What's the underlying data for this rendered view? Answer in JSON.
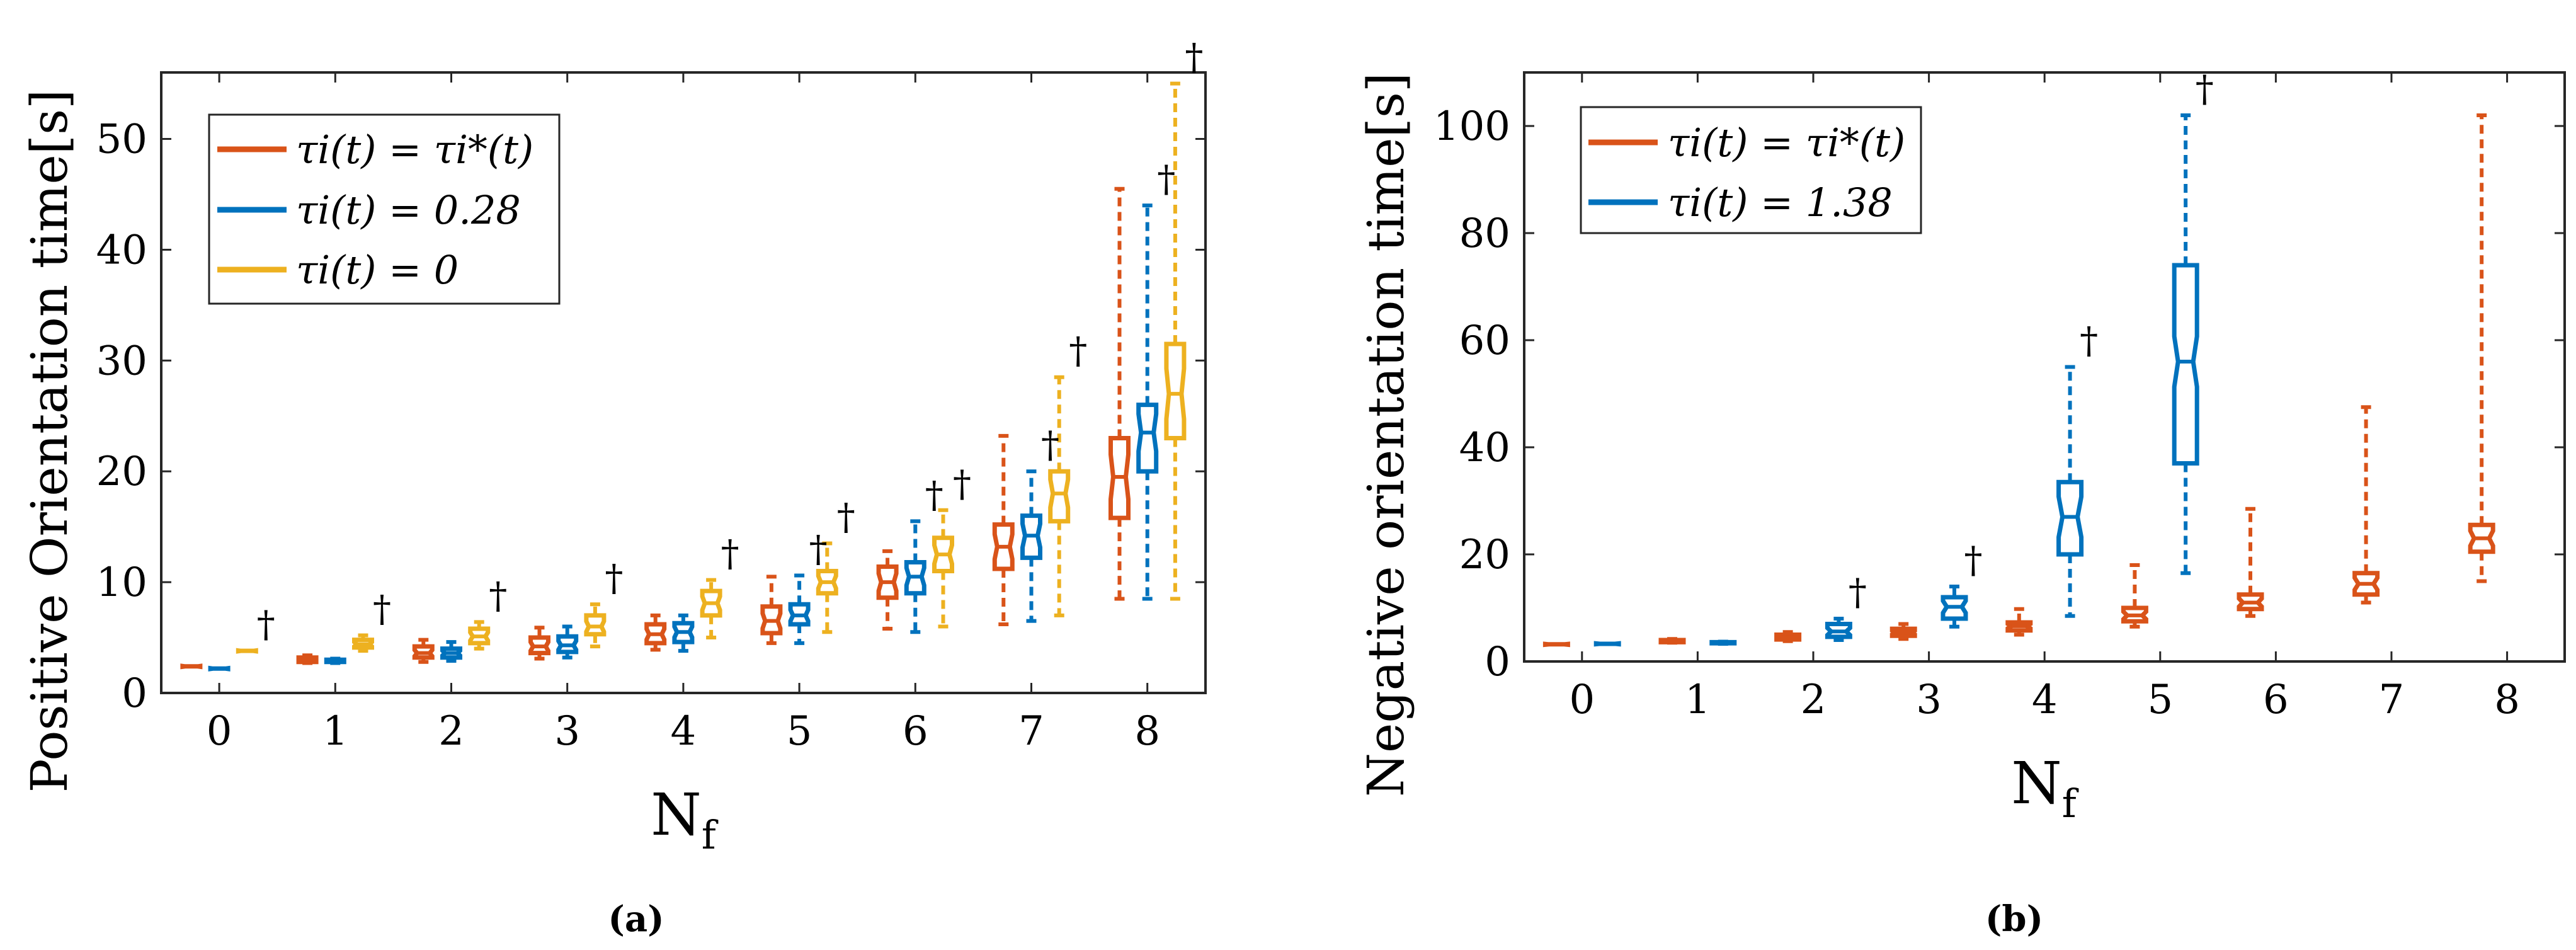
{
  "chart_data": [
    {
      "type": "box",
      "panel": "a",
      "caption_letter": "a",
      "xlabel": "N",
      "xlabel_sub": "f",
      "ylabel": "Positive Orientation time[s]",
      "xlim": [
        -0.5,
        8.5
      ],
      "ylim": [
        0,
        56
      ],
      "categories": [
        "0",
        "1",
        "2",
        "3",
        "4",
        "5",
        "6",
        "7",
        "8"
      ],
      "yticks": [
        "0",
        "10",
        "20",
        "30",
        "40",
        "50"
      ],
      "ytick_values": [
        0,
        10,
        20,
        30,
        40,
        50
      ],
      "legend_position": "top-left",
      "dagger": "†",
      "series": [
        {
          "name": "τi(t) = τi*(t)",
          "color": "#D95319",
          "boxes": [
            {
              "x": 0,
              "min": 2.4,
              "q1": 2.4,
              "med": 2.4,
              "q3": 2.4,
              "max": 2.4
            },
            {
              "x": 1,
              "min": 2.7,
              "q1": 2.8,
              "med": 3.0,
              "q3": 3.2,
              "max": 3.4
            },
            {
              "x": 2,
              "min": 2.8,
              "q1": 3.2,
              "med": 3.6,
              "q3": 4.2,
              "max": 4.8
            },
            {
              "x": 3,
              "min": 3.1,
              "q1": 3.6,
              "med": 4.2,
              "q3": 5.0,
              "max": 5.9
            },
            {
              "x": 4,
              "min": 3.9,
              "q1": 4.5,
              "med": 5.3,
              "q3": 6.2,
              "max": 7.0
            },
            {
              "x": 5,
              "min": 4.5,
              "q1": 5.4,
              "med": 6.5,
              "q3": 7.8,
              "max": 10.5
            },
            {
              "x": 6,
              "min": 5.8,
              "q1": 8.6,
              "med": 10.0,
              "q3": 11.4,
              "max": 12.8
            },
            {
              "x": 7,
              "min": 6.2,
              "q1": 11.2,
              "med": 13.2,
              "q3": 15.2,
              "max": 23.2
            },
            {
              "x": 8,
              "min": 8.5,
              "q1": 15.8,
              "med": 19.5,
              "q3": 23.0,
              "max": 45.5
            }
          ]
        },
        {
          "name": "τi(t) = 0.28",
          "color": "#0072BD",
          "boxes": [
            {
              "x": 0,
              "min": 2.2,
              "q1": 2.2,
              "med": 2.2,
              "q3": 2.2,
              "max": 2.2
            },
            {
              "x": 1,
              "min": 2.7,
              "q1": 2.8,
              "med": 2.9,
              "q3": 3.0,
              "max": 3.1
            },
            {
              "x": 2,
              "min": 2.9,
              "q1": 3.2,
              "med": 3.6,
              "q3": 4.0,
              "max": 4.6
            },
            {
              "x": 3,
              "min": 3.2,
              "q1": 3.7,
              "med": 4.3,
              "q3": 5.1,
              "max": 6.0
            },
            {
              "x": 4,
              "min": 3.8,
              "q1": 4.6,
              "med": 5.5,
              "q3": 6.3,
              "max": 7.0
            },
            {
              "x": 5,
              "min": 4.5,
              "q1": 6.2,
              "med": 7.0,
              "q3": 8.0,
              "max": 10.6
            },
            {
              "x": 6,
              "min": 5.5,
              "q1": 9.0,
              "med": 10.5,
              "q3": 11.8,
              "max": 15.5
            },
            {
              "x": 7,
              "min": 6.5,
              "q1": 12.2,
              "med": 14.2,
              "q3": 16.0,
              "max": 20.0
            },
            {
              "x": 8,
              "min": 8.5,
              "q1": 20.0,
              "med": 23.5,
              "q3": 26.0,
              "max": 44.0
            }
          ]
        },
        {
          "name": "τi(t) = 0",
          "color": "#EDB120",
          "boxes": [
            {
              "x": 0,
              "min": 3.8,
              "q1": 3.8,
              "med": 3.8,
              "q3": 3.8,
              "max": 3.8
            },
            {
              "x": 1,
              "min": 3.8,
              "q1": 4.1,
              "med": 4.4,
              "q3": 4.8,
              "max": 5.2
            },
            {
              "x": 2,
              "min": 4.0,
              "q1": 4.5,
              "med": 5.1,
              "q3": 5.8,
              "max": 6.4
            },
            {
              "x": 3,
              "min": 4.2,
              "q1": 5.3,
              "med": 6.0,
              "q3": 7.0,
              "max": 8.0
            },
            {
              "x": 4,
              "min": 5.0,
              "q1": 7.0,
              "med": 8.1,
              "q3": 9.2,
              "max": 10.2
            },
            {
              "x": 5,
              "min": 5.5,
              "q1": 9.0,
              "med": 10.0,
              "q3": 11.0,
              "max": 13.5
            },
            {
              "x": 6,
              "min": 6.0,
              "q1": 11.0,
              "med": 12.5,
              "q3": 14.0,
              "max": 16.5
            },
            {
              "x": 7,
              "min": 7.0,
              "q1": 15.5,
              "med": 18.0,
              "q3": 20.0,
              "max": 28.5
            },
            {
              "x": 8,
              "min": 8.5,
              "q1": 23.0,
              "med": 27.0,
              "q3": 31.5,
              "max": 55.0
            }
          ]
        }
      ],
      "daggers": [
        {
          "x": 0,
          "series": 2,
          "y": 3.8
        },
        {
          "x": 1,
          "series": 2,
          "y": 5.2
        },
        {
          "x": 2,
          "series": 2,
          "y": 6.4
        },
        {
          "x": 3,
          "series": 2,
          "y": 8.0
        },
        {
          "x": 4,
          "series": 2,
          "y": 10.2
        },
        {
          "x": 5,
          "series": 1,
          "y": 10.6
        },
        {
          "x": 5,
          "series": 2,
          "y": 13.5
        },
        {
          "x": 6,
          "series": 1,
          "y": 15.5
        },
        {
          "x": 6,
          "series": 2,
          "y": 16.5
        },
        {
          "x": 7,
          "series": 1,
          "y": 20.0
        },
        {
          "x": 7,
          "series": 2,
          "y": 28.5
        },
        {
          "x": 8,
          "series": 1,
          "y": 44.0
        },
        {
          "x": 8,
          "series": 2,
          "y": 55.0
        }
      ]
    },
    {
      "type": "box",
      "panel": "b",
      "caption_letter": "b",
      "xlabel": "N",
      "xlabel_sub": "f",
      "ylabel": "Negative orientation time[s]",
      "xlim": [
        -0.5,
        8.5
      ],
      "ylim": [
        0,
        110
      ],
      "categories": [
        "0",
        "1",
        "2",
        "3",
        "4",
        "5",
        "6",
        "7",
        "8"
      ],
      "yticks": [
        "0",
        "20",
        "40",
        "60",
        "80",
        "100"
      ],
      "ytick_values": [
        0,
        20,
        40,
        60,
        80,
        100
      ],
      "legend_position": "top-left",
      "dagger": "†",
      "series": [
        {
          "name": "τi(t) = τi*(t)",
          "color": "#D95319",
          "boxes": [
            {
              "x": 0,
              "min": 3.2,
              "q1": 3.2,
              "med": 3.2,
              "q3": 3.2,
              "max": 3.2
            },
            {
              "x": 1,
              "min": 3.5,
              "q1": 3.6,
              "med": 3.8,
              "q3": 4.0,
              "max": 4.2
            },
            {
              "x": 2,
              "min": 3.8,
              "q1": 4.1,
              "med": 4.5,
              "q3": 5.0,
              "max": 5.5
            },
            {
              "x": 3,
              "min": 4.2,
              "q1": 4.8,
              "med": 5.4,
              "q3": 6.1,
              "max": 7.0
            },
            {
              "x": 4,
              "min": 5.0,
              "q1": 5.8,
              "med": 6.6,
              "q3": 7.3,
              "max": 9.8
            },
            {
              "x": 5,
              "min": 6.5,
              "q1": 7.5,
              "med": 8.6,
              "q3": 10.0,
              "max": 18.0
            },
            {
              "x": 6,
              "min": 8.5,
              "q1": 9.8,
              "med": 11.0,
              "q3": 12.5,
              "max": 28.5
            },
            {
              "x": 7,
              "min": 11.0,
              "q1": 12.5,
              "med": 14.5,
              "q3": 16.5,
              "max": 47.5
            },
            {
              "x": 8,
              "min": 15.0,
              "q1": 20.5,
              "med": 23.0,
              "q3": 25.5,
              "max": 102.0
            }
          ]
        },
        {
          "name": "τi(t) = 1.38",
          "color": "#0072BD",
          "boxes": [
            {
              "x": 0,
              "min": 3.3,
              "q1": 3.3,
              "med": 3.3,
              "q3": 3.3,
              "max": 3.3
            },
            {
              "x": 1,
              "min": 3.3,
              "q1": 3.4,
              "med": 3.5,
              "q3": 3.6,
              "max": 3.7
            },
            {
              "x": 2,
              "min": 4.0,
              "q1": 4.6,
              "med": 5.6,
              "q3": 7.0,
              "max": 8.0
            },
            {
              "x": 3,
              "min": 6.5,
              "q1": 8.0,
              "med": 10.2,
              "q3": 12.0,
              "max": 14.0
            },
            {
              "x": 4,
              "min": 8.5,
              "q1": 20.0,
              "med": 27.0,
              "q3": 33.5,
              "max": 55.0
            },
            {
              "x": 5,
              "min": 16.5,
              "q1": 37.0,
              "med": 56.0,
              "q3": 74.0,
              "max": 102.0
            }
          ]
        }
      ],
      "daggers": [
        {
          "x": 2,
          "series": 1,
          "y": 8.0
        },
        {
          "x": 3,
          "series": 1,
          "y": 14.0
        },
        {
          "x": 4,
          "series": 1,
          "y": 55.0
        },
        {
          "x": 5,
          "series": 1,
          "y": 102.0
        }
      ]
    }
  ]
}
